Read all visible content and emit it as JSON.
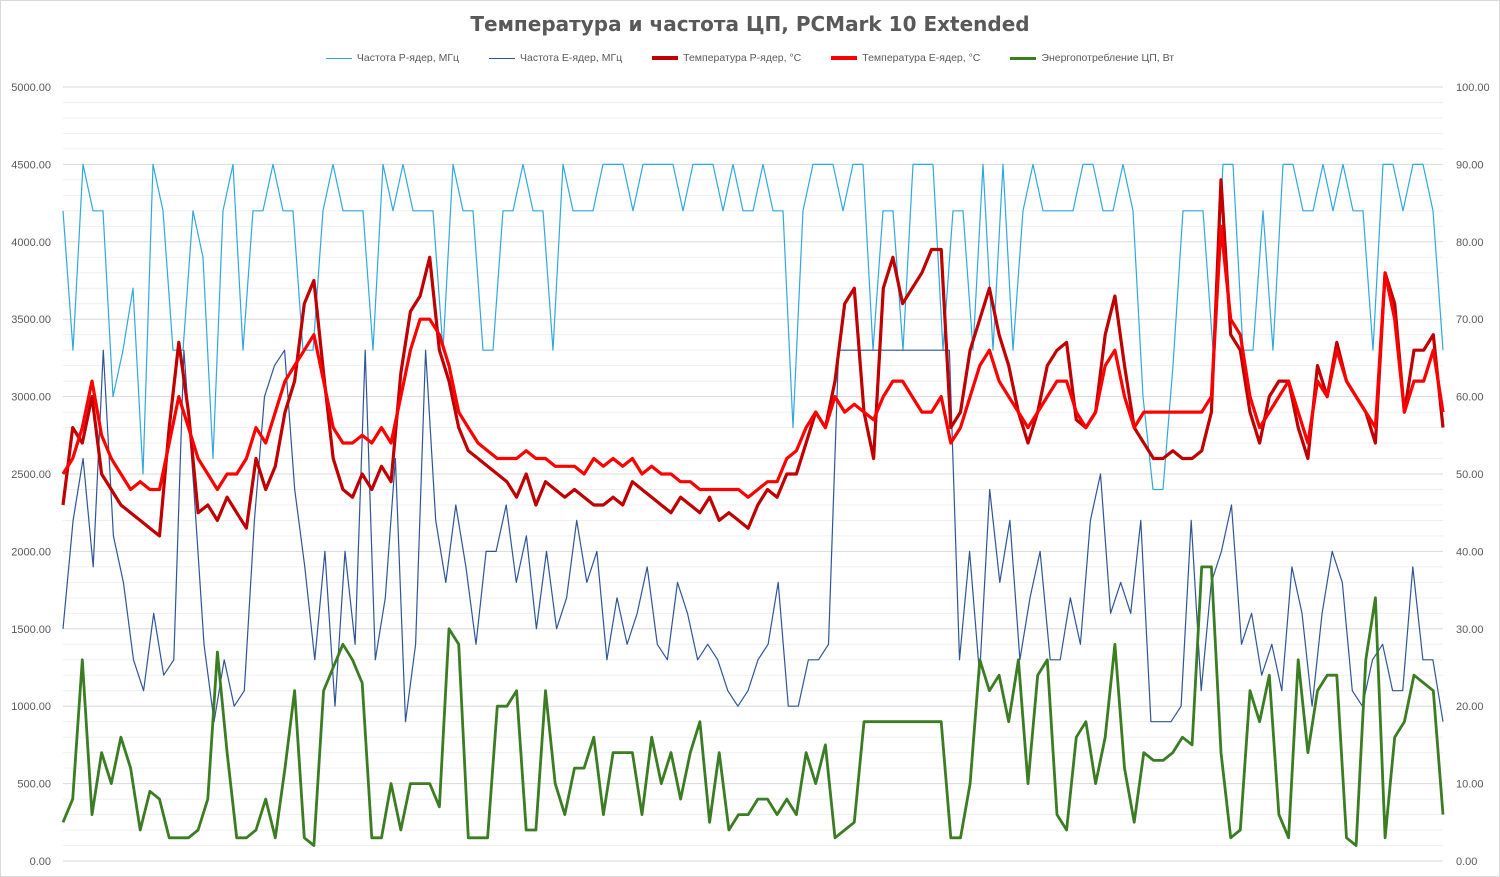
{
  "chart_data": {
    "type": "line",
    "title": "Температура и частота ЦП, PCMark 10 Extended",
    "xlabel": "",
    "ylabel": "",
    "y_left": {
      "ylim": [
        0,
        5000
      ],
      "ticks": [
        "0.00",
        "500.00",
        "1000.00",
        "1500.00",
        "2000.00",
        "2500.00",
        "3000.00",
        "3500.00",
        "4000.00",
        "4500.00",
        "5000.00"
      ]
    },
    "y_right": {
      "ylim": [
        0,
        100
      ],
      "ticks": [
        "0.00",
        "10.00",
        "20.00",
        "30.00",
        "40.00",
        "50.00",
        "60.00",
        "70.00",
        "80.00",
        "90.00",
        "100.00"
      ]
    },
    "grid": true,
    "legend_position": "top",
    "series": [
      {
        "name": "Частота P-ядер, МГц",
        "axis": "left",
        "color": "#2FA8E0",
        "values": [
          4200,
          3300,
          4500,
          4200,
          4200,
          3000,
          3300,
          3700,
          2500,
          4500,
          4200,
          3300,
          3300,
          4200,
          3900,
          2600,
          4200,
          4500,
          3300,
          4200,
          4200,
          4500,
          4200,
          4200,
          3300,
          3300,
          4200,
          4500,
          4200,
          4200,
          4200,
          3300,
          4500,
          4200,
          4500,
          4200,
          4200,
          4200,
          3300,
          4500,
          4200,
          4200,
          3300,
          3300,
          4200,
          4200,
          4500,
          4200,
          4200,
          3300,
          4500,
          4200,
          4200,
          4200,
          4500,
          4500,
          4500,
          4200,
          4500,
          4500,
          4500,
          4500,
          4200,
          4500,
          4500,
          4500,
          4200,
          4500,
          4200,
          4200,
          4500,
          4200,
          4200,
          2800,
          4200,
          4500,
          4500,
          4500,
          4200,
          4500,
          4500,
          3300,
          4200,
          4200,
          3300,
          4500,
          4500,
          4500,
          3300,
          4200,
          4200,
          3300,
          4500,
          3300,
          4500,
          3300,
          4200,
          4500,
          4200,
          4200,
          4200,
          4200,
          4500,
          4500,
          4200,
          4200,
          4500,
          4200,
          3000,
          2400,
          2400,
          3200,
          4200,
          4200,
          4200,
          3300,
          4500,
          4500,
          3300,
          3300,
          4200,
          3300,
          4500,
          4500,
          4200,
          4200,
          4500,
          4200,
          4500,
          4200,
          4200,
          3300,
          4500,
          4500,
          4200,
          4500,
          4500,
          4200,
          3300
        ]
      },
      {
        "name": "Частота E-ядер, МГц",
        "axis": "left",
        "color": "#2F5597",
        "values": [
          1500,
          2200,
          2600,
          1900,
          3300,
          2100,
          1800,
          1300,
          1100,
          1600,
          1200,
          1300,
          3300,
          2400,
          1400,
          900,
          1300,
          1000,
          1100,
          2200,
          3000,
          3200,
          3300,
          2400,
          1900,
          1300,
          2000,
          1000,
          2000,
          1400,
          3300,
          1300,
          1700,
          2600,
          900,
          1400,
          3300,
          2200,
          1800,
          2300,
          1900,
          1400,
          2000,
          2000,
          2300,
          1800,
          2100,
          1500,
          2000,
          1500,
          1700,
          2200,
          1800,
          2000,
          1300,
          1700,
          1400,
          1600,
          1900,
          1400,
          1300,
          1800,
          1600,
          1300,
          1400,
          1300,
          1100,
          1000,
          1100,
          1300,
          1400,
          1800,
          1000,
          1000,
          1300,
          1300,
          1400,
          3300,
          3300,
          3300,
          3300,
          3300,
          3300,
          3300,
          3300,
          3300,
          3300,
          3300,
          3300,
          1300,
          2000,
          1200,
          2400,
          1800,
          2200,
          1300,
          1700,
          2000,
          1300,
          1300,
          1700,
          1400,
          2200,
          2500,
          1600,
          1800,
          1600,
          2200,
          900,
          900,
          900,
          1000,
          2200,
          1100,
          1800,
          2000,
          2300,
          1400,
          1600,
          1200,
          1400,
          1100,
          1900,
          1600,
          1000,
          1600,
          2000,
          1800,
          1100,
          1000,
          1300,
          1400,
          1100,
          1100,
          1900,
          1300,
          1300,
          900
        ]
      },
      {
        "name": "Температура P-ядер, °C",
        "axis": "right",
        "color": "#C00000",
        "values": [
          46,
          56,
          54,
          60,
          50,
          48,
          46,
          45,
          44,
          43,
          42,
          56,
          67,
          58,
          45,
          46,
          44,
          47,
          45,
          43,
          52,
          48,
          51,
          58,
          62,
          72,
          75,
          63,
          52,
          48,
          47,
          50,
          48,
          51,
          49,
          63,
          71,
          73,
          78,
          66,
          62,
          56,
          53,
          52,
          51,
          50,
          49,
          47,
          50,
          46,
          49,
          48,
          47,
          48,
          47,
          46,
          46,
          47,
          46,
          49,
          48,
          47,
          46,
          45,
          47,
          46,
          45,
          47,
          44,
          45,
          44,
          43,
          46,
          48,
          47,
          50,
          50,
          54,
          58,
          56,
          62,
          72,
          74,
          58,
          52,
          74,
          78,
          72,
          74,
          76,
          79,
          79,
          56,
          58,
          66,
          70,
          74,
          68,
          64,
          58,
          54,
          58,
          64,
          66,
          67,
          57,
          56,
          58,
          68,
          73,
          64,
          56,
          54,
          52,
          52,
          53,
          52,
          52,
          53,
          58,
          88,
          68,
          66,
          58,
          54,
          60,
          62,
          62,
          56,
          52,
          64,
          60,
          67,
          62,
          60,
          58,
          54,
          76,
          72,
          58,
          66,
          66,
          68,
          56
        ]
      },
      {
        "name": "Температура E-ядер, °C",
        "axis": "right",
        "color": "#FF0000",
        "values": [
          50,
          52,
          56,
          62,
          55,
          52,
          50,
          48,
          49,
          48,
          48,
          54,
          60,
          56,
          52,
          50,
          48,
          50,
          50,
          52,
          56,
          54,
          58,
          62,
          64,
          66,
          68,
          62,
          56,
          54,
          54,
          55,
          54,
          56,
          54,
          60,
          66,
          70,
          70,
          68,
          64,
          58,
          56,
          54,
          53,
          52,
          52,
          52,
          53,
          52,
          52,
          51,
          51,
          51,
          50,
          52,
          51,
          52,
          51,
          52,
          50,
          51,
          50,
          50,
          49,
          49,
          48,
          48,
          48,
          48,
          48,
          47,
          48,
          49,
          49,
          52,
          53,
          56,
          58,
          56,
          60,
          58,
          59,
          58,
          57,
          60,
          62,
          62,
          60,
          58,
          58,
          60,
          54,
          56,
          60,
          64,
          66,
          62,
          60,
          58,
          56,
          58,
          60,
          62,
          62,
          58,
          56,
          58,
          64,
          66,
          60,
          56,
          58,
          58,
          58,
          58,
          58,
          58,
          58,
          60,
          82,
          70,
          68,
          60,
          56,
          58,
          60,
          62,
          58,
          54,
          62,
          60,
          66,
          62,
          60,
          58,
          56,
          76,
          70,
          58,
          62,
          62,
          66,
          58
        ]
      },
      {
        "name": "Энергопотребление ЦП, Вт",
        "axis": "right",
        "color": "#3A7D22",
        "values": [
          5,
          8,
          26,
          6,
          14,
          10,
          16,
          12,
          4,
          9,
          8,
          3,
          3,
          3,
          4,
          8,
          27,
          14,
          3,
          3,
          4,
          8,
          3,
          12,
          22,
          3,
          2,
          22,
          25,
          28,
          26,
          23,
          3,
          3,
          10,
          4,
          10,
          10,
          10,
          7,
          30,
          28,
          3,
          3,
          3,
          20,
          20,
          22,
          4,
          4,
          22,
          10,
          6,
          12,
          12,
          16,
          6,
          14,
          14,
          14,
          6,
          16,
          10,
          14,
          8,
          14,
          18,
          5,
          14,
          4,
          6,
          6,
          8,
          8,
          6,
          8,
          6,
          14,
          10,
          15,
          3,
          4,
          5,
          18,
          18,
          18,
          18,
          18,
          18,
          18,
          18,
          18,
          3,
          3,
          10,
          26,
          22,
          24,
          18,
          26,
          10,
          24,
          26,
          6,
          4,
          16,
          18,
          10,
          16,
          28,
          12,
          5,
          14,
          13,
          13,
          14,
          16,
          15,
          38,
          38,
          14,
          3,
          4,
          22,
          18,
          24,
          6,
          3,
          26,
          14,
          22,
          24,
          24,
          3,
          2,
          26,
          34,
          3,
          16,
          18,
          24,
          23,
          22,
          6
        ]
      }
    ]
  }
}
